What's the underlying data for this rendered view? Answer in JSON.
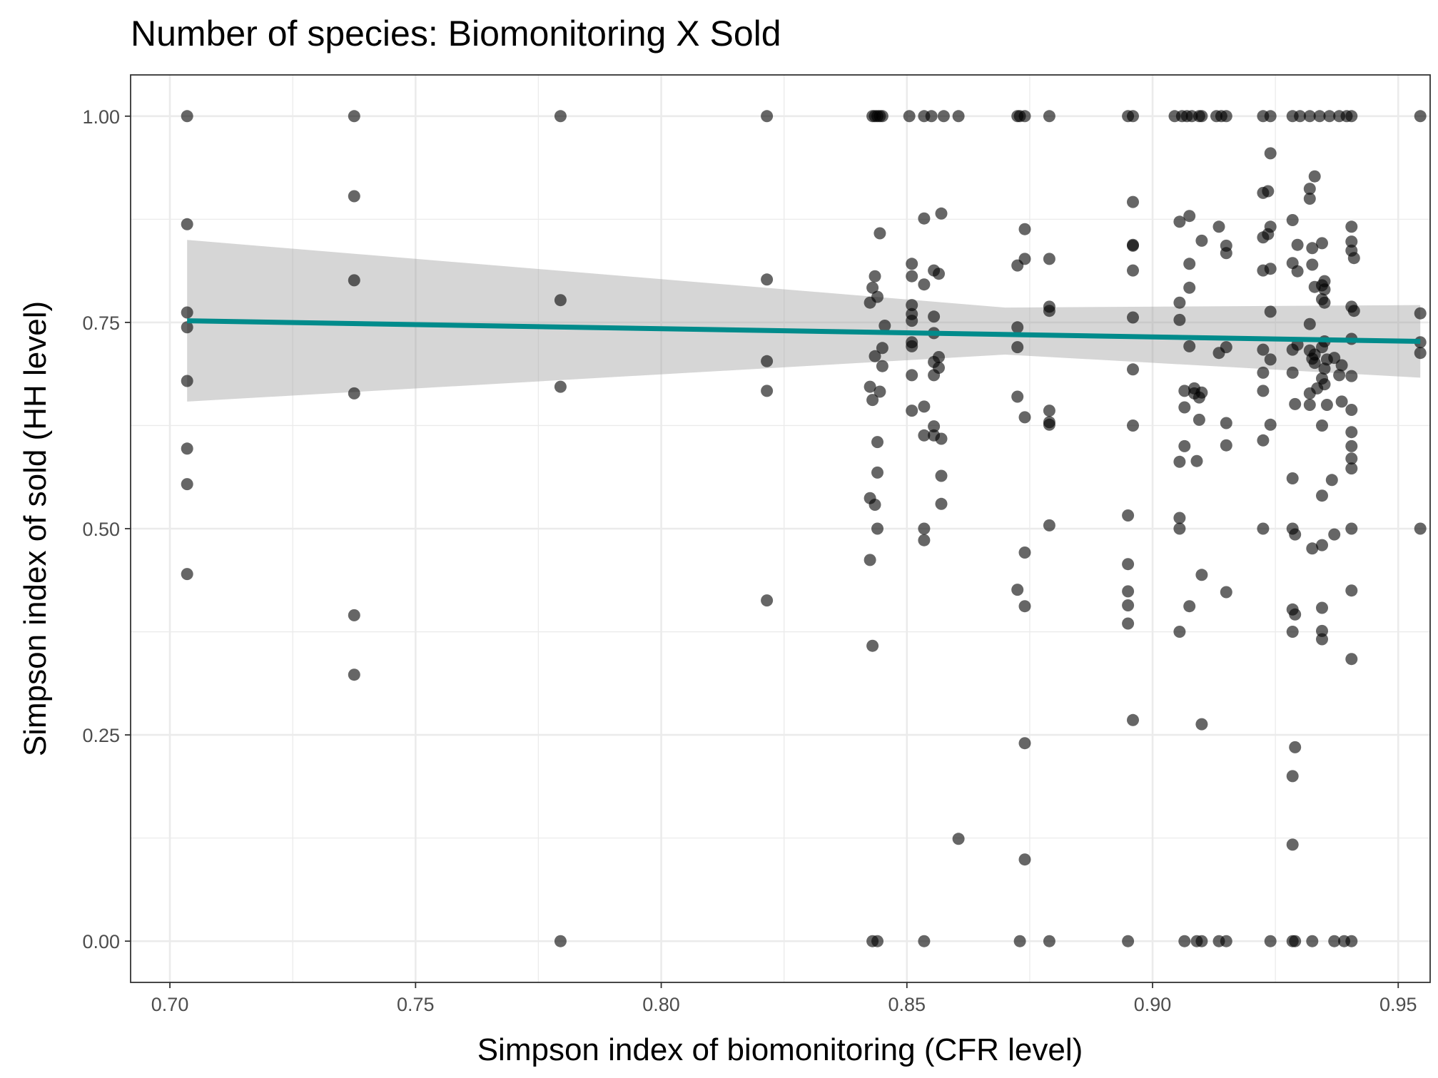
{
  "chart_data": {
    "type": "scatter",
    "title": "Number of species: Biomonitoring X Sold",
    "xlabel": "Simpson index of biomonitoring (CFR level)",
    "ylabel": "Simpson index of sold (HH level)",
    "xlim": [
      0.692,
      0.9565
    ],
    "ylim": [
      -0.05,
      1.05
    ],
    "x_ticks": [
      0.7,
      0.75,
      0.8,
      0.85,
      0.9,
      0.95
    ],
    "x_tick_labels": [
      "0.70",
      "0.75",
      "0.80",
      "0.85",
      "0.90",
      "0.95"
    ],
    "y_ticks": [
      0.0,
      0.25,
      0.5,
      0.75,
      1.0
    ],
    "y_tick_labels": [
      "0.00",
      "0.25",
      "0.50",
      "0.75",
      "1.00"
    ],
    "grid": true,
    "colors": {
      "points": "#000000",
      "trend_line": "#008B8B",
      "confidence_band": "#999999",
      "panel_border": "#333333",
      "grid": "#ebebeb"
    },
    "trend": {
      "type": "linear",
      "x": [
        0.7035,
        0.9545
      ],
      "y": [
        0.752,
        0.727
      ],
      "ci_lower": [
        0.654,
        0.683
      ],
      "ci_upper": [
        0.85,
        0.771
      ],
      "ci_middle_x": 0.87,
      "ci_middle_lower": 0.711,
      "ci_middle_upper": 0.768
    },
    "points": [
      [
        0.7035,
        1.0
      ],
      [
        0.7035,
        0.869
      ],
      [
        0.7035,
        0.762
      ],
      [
        0.7035,
        0.744
      ],
      [
        0.7035,
        0.679
      ],
      [
        0.7035,
        0.597
      ],
      [
        0.7035,
        0.554
      ],
      [
        0.7035,
        0.445
      ],
      [
        0.7375,
        1.0
      ],
      [
        0.7375,
        0.903
      ],
      [
        0.7375,
        0.801
      ],
      [
        0.7375,
        0.664
      ],
      [
        0.7375,
        0.395
      ],
      [
        0.7375,
        0.323
      ],
      [
        0.7795,
        1.0
      ],
      [
        0.7795,
        0.777
      ],
      [
        0.7795,
        0.672
      ],
      [
        0.7795,
        0.0
      ],
      [
        0.8215,
        1.0
      ],
      [
        0.8215,
        0.802
      ],
      [
        0.8215,
        0.703
      ],
      [
        0.8215,
        0.667
      ],
      [
        0.8215,
        0.413
      ],
      [
        0.843,
        1.0
      ],
      [
        0.8435,
        1.0
      ],
      [
        0.844,
        1.0
      ],
      [
        0.8445,
        1.0
      ],
      [
        0.845,
        1.0
      ],
      [
        0.8425,
        0.774
      ],
      [
        0.843,
        0.792
      ],
      [
        0.8435,
        0.806
      ],
      [
        0.844,
        0.781
      ],
      [
        0.8445,
        0.858
      ],
      [
        0.8455,
        0.746
      ],
      [
        0.8435,
        0.709
      ],
      [
        0.845,
        0.719
      ],
      [
        0.8425,
        0.672
      ],
      [
        0.843,
        0.656
      ],
      [
        0.8445,
        0.666
      ],
      [
        0.845,
        0.697
      ],
      [
        0.844,
        0.605
      ],
      [
        0.844,
        0.568
      ],
      [
        0.8425,
        0.537
      ],
      [
        0.8435,
        0.529
      ],
      [
        0.844,
        0.5
      ],
      [
        0.8425,
        0.462
      ],
      [
        0.843,
        0.358
      ],
      [
        0.843,
        0.0
      ],
      [
        0.844,
        0.0
      ],
      [
        0.8505,
        1.0
      ],
      [
        0.8535,
        1.0
      ],
      [
        0.855,
        1.0
      ],
      [
        0.8575,
        1.0
      ],
      [
        0.8605,
        1.0
      ],
      [
        0.8535,
        0.876
      ],
      [
        0.857,
        0.882
      ],
      [
        0.851,
        0.821
      ],
      [
        0.8555,
        0.813
      ],
      [
        0.8565,
        0.809
      ],
      [
        0.851,
        0.806
      ],
      [
        0.8535,
        0.796
      ],
      [
        0.851,
        0.771
      ],
      [
        0.851,
        0.76
      ],
      [
        0.8555,
        0.757
      ],
      [
        0.851,
        0.752
      ],
      [
        0.8555,
        0.737
      ],
      [
        0.851,
        0.726
      ],
      [
        0.851,
        0.721
      ],
      [
        0.8565,
        0.708
      ],
      [
        0.8555,
        0.702
      ],
      [
        0.8565,
        0.695
      ],
      [
        0.8555,
        0.686
      ],
      [
        0.851,
        0.686
      ],
      [
        0.8535,
        0.648
      ],
      [
        0.851,
        0.643
      ],
      [
        0.8555,
        0.624
      ],
      [
        0.8535,
        0.613
      ],
      [
        0.8555,
        0.613
      ],
      [
        0.857,
        0.609
      ],
      [
        0.857,
        0.564
      ],
      [
        0.857,
        0.53
      ],
      [
        0.8535,
        0.5
      ],
      [
        0.8535,
        0.486
      ],
      [
        0.8605,
        0.124
      ],
      [
        0.8535,
        0.0
      ],
      [
        0.8725,
        1.0
      ],
      [
        0.873,
        1.0
      ],
      [
        0.874,
        1.0
      ],
      [
        0.879,
        1.0
      ],
      [
        0.874,
        0.863
      ],
      [
        0.874,
        0.827
      ],
      [
        0.8725,
        0.819
      ],
      [
        0.879,
        0.827
      ],
      [
        0.879,
        0.769
      ],
      [
        0.879,
        0.764
      ],
      [
        0.8725,
        0.744
      ],
      [
        0.8725,
        0.72
      ],
      [
        0.8725,
        0.66
      ],
      [
        0.874,
        0.635
      ],
      [
        0.879,
        0.643
      ],
      [
        0.879,
        0.629
      ],
      [
        0.879,
        0.626
      ],
      [
        0.879,
        0.504
      ],
      [
        0.874,
        0.471
      ],
      [
        0.8725,
        0.426
      ],
      [
        0.874,
        0.406
      ],
      [
        0.874,
        0.24
      ],
      [
        0.874,
        0.099
      ],
      [
        0.873,
        0.0
      ],
      [
        0.879,
        0.0
      ],
      [
        0.895,
        1.0
      ],
      [
        0.896,
        1.0
      ],
      [
        0.9045,
        1.0
      ],
      [
        0.906,
        1.0
      ],
      [
        0.907,
        1.0
      ],
      [
        0.908,
        1.0
      ],
      [
        0.9095,
        1.0
      ],
      [
        0.91,
        1.0
      ],
      [
        0.913,
        1.0
      ],
      [
        0.914,
        1.0
      ],
      [
        0.915,
        1.0
      ],
      [
        0.896,
        0.896
      ],
      [
        0.9055,
        0.872
      ],
      [
        0.9075,
        0.879
      ],
      [
        0.9135,
        0.866
      ],
      [
        0.896,
        0.844
      ],
      [
        0.896,
        0.843
      ],
      [
        0.91,
        0.849
      ],
      [
        0.915,
        0.843
      ],
      [
        0.915,
        0.834
      ],
      [
        0.9075,
        0.821
      ],
      [
        0.896,
        0.813
      ],
      [
        0.9075,
        0.792
      ],
      [
        0.9055,
        0.774
      ],
      [
        0.896,
        0.756
      ],
      [
        0.9055,
        0.753
      ],
      [
        0.9075,
        0.721
      ],
      [
        0.9135,
        0.713
      ],
      [
        0.915,
        0.72
      ],
      [
        0.896,
        0.693
      ],
      [
        0.9085,
        0.67
      ],
      [
        0.9095,
        0.659
      ],
      [
        0.91,
        0.665
      ],
      [
        0.9065,
        0.667
      ],
      [
        0.9085,
        0.664
      ],
      [
        0.9065,
        0.647
      ],
      [
        0.9095,
        0.632
      ],
      [
        0.896,
        0.625
      ],
      [
        0.915,
        0.628
      ],
      [
        0.9065,
        0.6
      ],
      [
        0.915,
        0.601
      ],
      [
        0.9055,
        0.581
      ],
      [
        0.909,
        0.582
      ],
      [
        0.9055,
        0.513
      ],
      [
        0.895,
        0.516
      ],
      [
        0.9055,
        0.5
      ],
      [
        0.895,
        0.457
      ],
      [
        0.91,
        0.444
      ],
      [
        0.895,
        0.424
      ],
      [
        0.915,
        0.423
      ],
      [
        0.895,
        0.407
      ],
      [
        0.9075,
        0.406
      ],
      [
        0.895,
        0.385
      ],
      [
        0.9055,
        0.375
      ],
      [
        0.896,
        0.268
      ],
      [
        0.91,
        0.263
      ],
      [
        0.895,
        0.0
      ],
      [
        0.9065,
        0.0
      ],
      [
        0.909,
        0.0
      ],
      [
        0.91,
        0.0
      ],
      [
        0.9135,
        0.0
      ],
      [
        0.915,
        0.0
      ],
      [
        0.9225,
        1.0
      ],
      [
        0.924,
        1.0
      ],
      [
        0.9285,
        1.0
      ],
      [
        0.93,
        1.0
      ],
      [
        0.932,
        1.0
      ],
      [
        0.934,
        1.0
      ],
      [
        0.936,
        1.0
      ],
      [
        0.938,
        1.0
      ],
      [
        0.9395,
        1.0
      ],
      [
        0.9405,
        1.0
      ],
      [
        0.924,
        0.955
      ],
      [
        0.9225,
        0.907
      ],
      [
        0.9235,
        0.909
      ],
      [
        0.932,
        0.912
      ],
      [
        0.932,
        0.9
      ],
      [
        0.933,
        0.927
      ],
      [
        0.9285,
        0.874
      ],
      [
        0.924,
        0.866
      ],
      [
        0.9225,
        0.853
      ],
      [
        0.9235,
        0.857
      ],
      [
        0.9295,
        0.844
      ],
      [
        0.9325,
        0.84
      ],
      [
        0.9345,
        0.846
      ],
      [
        0.9405,
        0.866
      ],
      [
        0.9405,
        0.848
      ],
      [
        0.9405,
        0.837
      ],
      [
        0.941,
        0.828
      ],
      [
        0.9225,
        0.813
      ],
      [
        0.924,
        0.815
      ],
      [
        0.9285,
        0.822
      ],
      [
        0.9325,
        0.82
      ],
      [
        0.9295,
        0.812
      ],
      [
        0.935,
        0.8
      ],
      [
        0.935,
        0.79
      ],
      [
        0.9345,
        0.795
      ],
      [
        0.933,
        0.793
      ],
      [
        0.9345,
        0.778
      ],
      [
        0.935,
        0.774
      ],
      [
        0.9405,
        0.769
      ],
      [
        0.941,
        0.764
      ],
      [
        0.924,
        0.763
      ],
      [
        0.932,
        0.748
      ],
      [
        0.9405,
        0.73
      ],
      [
        0.935,
        0.727
      ],
      [
        0.9225,
        0.717
      ],
      [
        0.9295,
        0.723
      ],
      [
        0.9285,
        0.717
      ],
      [
        0.932,
        0.716
      ],
      [
        0.9345,
        0.72
      ],
      [
        0.9325,
        0.706
      ],
      [
        0.933,
        0.701
      ],
      [
        0.933,
        0.711
      ],
      [
        0.9355,
        0.705
      ],
      [
        0.937,
        0.707
      ],
      [
        0.9385,
        0.698
      ],
      [
        0.924,
        0.705
      ],
      [
        0.9225,
        0.689
      ],
      [
        0.9285,
        0.689
      ],
      [
        0.935,
        0.694
      ],
      [
        0.9345,
        0.682
      ],
      [
        0.938,
        0.686
      ],
      [
        0.9405,
        0.685
      ],
      [
        0.935,
        0.675
      ],
      [
        0.9335,
        0.67
      ],
      [
        0.9225,
        0.667
      ],
      [
        0.932,
        0.664
      ],
      [
        0.929,
        0.651
      ],
      [
        0.932,
        0.65
      ],
      [
        0.9355,
        0.65
      ],
      [
        0.9385,
        0.654
      ],
      [
        0.9405,
        0.644
      ],
      [
        0.924,
        0.626
      ],
      [
        0.9345,
        0.625
      ],
      [
        0.9405,
        0.617
      ],
      [
        0.9225,
        0.607
      ],
      [
        0.9405,
        0.6
      ],
      [
        0.9405,
        0.585
      ],
      [
        0.9405,
        0.573
      ],
      [
        0.9285,
        0.561
      ],
      [
        0.9365,
        0.559
      ],
      [
        0.9345,
        0.54
      ],
      [
        0.9225,
        0.5
      ],
      [
        0.9285,
        0.5
      ],
      [
        0.929,
        0.493
      ],
      [
        0.937,
        0.493
      ],
      [
        0.9405,
        0.5
      ],
      [
        0.9345,
        0.48
      ],
      [
        0.9325,
        0.476
      ],
      [
        0.9405,
        0.425
      ],
      [
        0.9285,
        0.402
      ],
      [
        0.9345,
        0.404
      ],
      [
        0.929,
        0.396
      ],
      [
        0.9285,
        0.375
      ],
      [
        0.9345,
        0.376
      ],
      [
        0.9345,
        0.366
      ],
      [
        0.9405,
        0.342
      ],
      [
        0.929,
        0.235
      ],
      [
        0.9285,
        0.2
      ],
      [
        0.9285,
        0.117
      ],
      [
        0.924,
        0.0
      ],
      [
        0.9285,
        0.0
      ],
      [
        0.929,
        0.0
      ],
      [
        0.9325,
        0.0
      ],
      [
        0.937,
        0.0
      ],
      [
        0.939,
        0.0
      ],
      [
        0.9405,
        0.0
      ],
      [
        0.9545,
        1.0
      ],
      [
        0.9545,
        0.761
      ],
      [
        0.9545,
        0.726
      ],
      [
        0.9545,
        0.713
      ],
      [
        0.9545,
        0.5
      ]
    ]
  }
}
